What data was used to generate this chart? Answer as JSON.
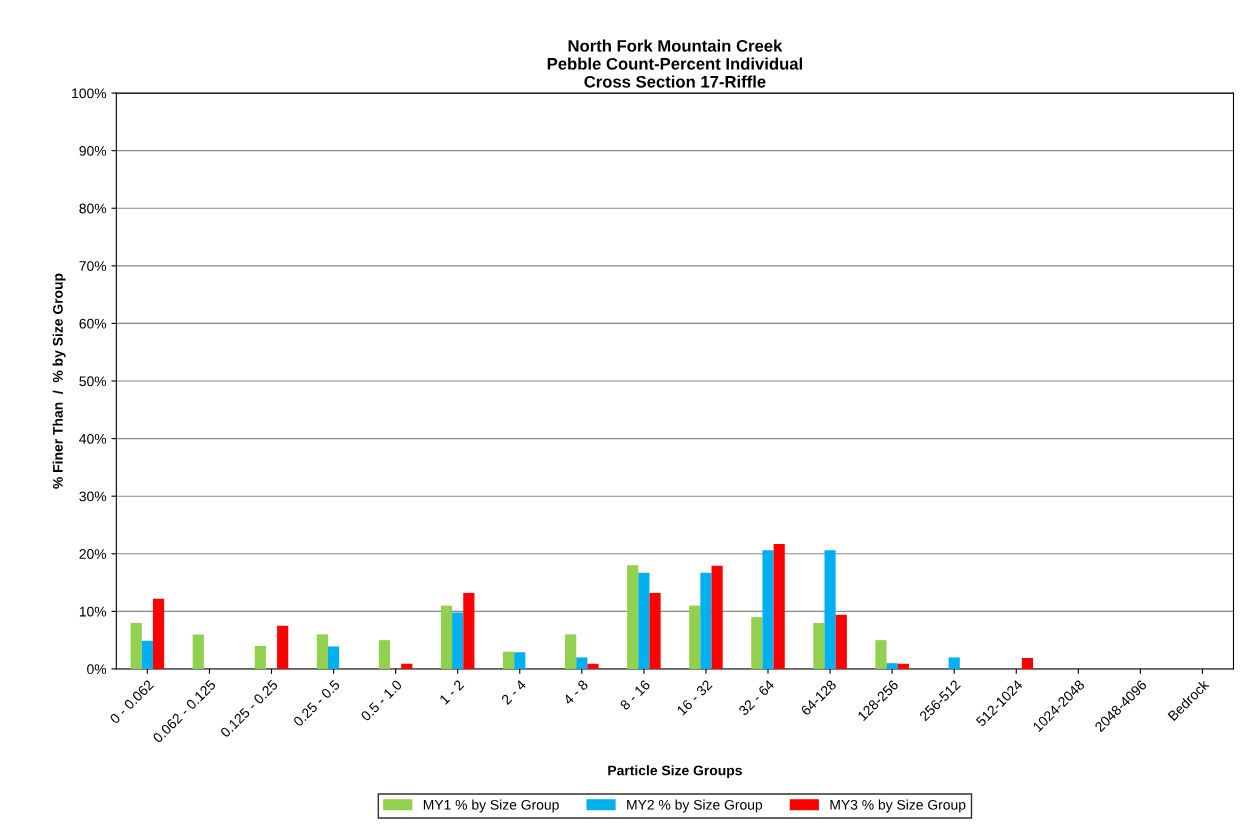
{
  "chart_data": {
    "type": "bar",
    "title": "North Fork Mountain Creek\nPebble Count-Percent Individual\nCross Section 17-Riffle",
    "xlabel": "Particle Size Groups",
    "ylabel": "% Finer Than  /  % by Size Group",
    "categories": [
      "0 - 0.062",
      "0.062 - 0.125",
      "0.125 - 0.25",
      "0.25 - 0.5",
      "0.5 - 1.0",
      "1 - 2",
      "2 - 4",
      "4 - 8",
      "8 - 16",
      "16 - 32",
      "32 - 64",
      "64-128",
      "128-256",
      "256-512",
      "512-1024",
      "1024-2048",
      "2048-4096",
      "Bedrock"
    ],
    "series": [
      {
        "name": "MY1 % by Size Group",
        "color": "#92d050",
        "values": [
          8,
          6,
          4,
          6,
          5,
          11,
          3,
          6,
          18,
          11,
          9,
          8,
          5,
          0,
          0,
          0,
          0,
          0
        ]
      },
      {
        "name": "MY2 % by Size Group",
        "color": "#00b0f0",
        "values": [
          4.9,
          0,
          0,
          3.9,
          0,
          9.8,
          2.9,
          2,
          16.7,
          16.7,
          20.6,
          20.6,
          1,
          2,
          0,
          0,
          0,
          0
        ]
      },
      {
        "name": "MY3 % by Size Group",
        "color": "#ff0000",
        "values": [
          12.2,
          0,
          7.5,
          0,
          0.9,
          13.2,
          0,
          0.9,
          13.2,
          17.9,
          21.7,
          9.4,
          0.9,
          0,
          1.9,
          0,
          0,
          0
        ]
      }
    ],
    "ylim": [
      0,
      100
    ],
    "yticks": [
      {
        "value": 0,
        "label": "0%"
      },
      {
        "value": 10,
        "label": "10%"
      },
      {
        "value": 20,
        "label": "20%"
      },
      {
        "value": 30,
        "label": "30%"
      },
      {
        "value": 40,
        "label": "40%"
      },
      {
        "value": 50,
        "label": "50%"
      },
      {
        "value": 60,
        "label": "60%"
      },
      {
        "value": 70,
        "label": "70%"
      },
      {
        "value": 80,
        "label": "80%"
      },
      {
        "value": 90,
        "label": "90%"
      },
      {
        "value": 100,
        "label": "100%"
      }
    ],
    "grid": "y",
    "legend": "bottom"
  }
}
